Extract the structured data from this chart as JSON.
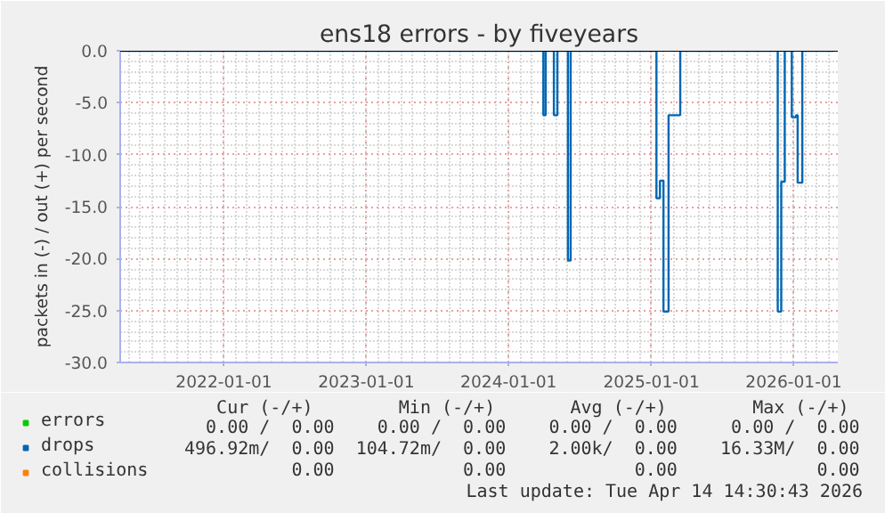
{
  "chart_data": {
    "type": "step",
    "title": "ens18 errors - by fiveyears",
    "ylabel": "packets in (-) / out (+) per second",
    "x": [
      "2021-04-14",
      "2024-03-30",
      "2024-04-05",
      "2024-04-26",
      "2024-05-05",
      "2024-06-01",
      "2024-06-08",
      "2025-01-14",
      "2025-01-23",
      "2025-02-01",
      "2025-02-14",
      "2025-03-16",
      "2025-11-21",
      "2025-11-30",
      "2025-12-09",
      "2025-12-27",
      "2026-01-07",
      "2026-01-11",
      "2026-01-23",
      "2026-04-14"
    ],
    "series": [
      {
        "name": "errors",
        "color": "#00cc00",
        "values": [
          null,
          null,
          null,
          null,
          null,
          null,
          null,
          null,
          null,
          null,
          null,
          null,
          null,
          null,
          null,
          null,
          null,
          null,
          null,
          null
        ]
      },
      {
        "name": "drops",
        "color": "#0066b3",
        "values": [
          0,
          -6.2,
          0,
          -6.2,
          0,
          -20.2,
          0,
          -14.2,
          -12.5,
          -25.1,
          -6.2,
          0,
          -25.1,
          -12.6,
          0,
          -6.4,
          -6.2,
          -12.7,
          0,
          0
        ]
      },
      {
        "name": "collisions",
        "color": "#ff8000",
        "values": [
          null,
          null,
          null,
          null,
          null,
          null,
          null,
          null,
          null,
          null,
          null,
          null,
          null,
          null,
          null,
          null,
          null,
          null,
          null,
          null
        ]
      }
    ],
    "xlim": [
      "2021-04-10",
      "2026-04-24"
    ],
    "xticks": [
      "2022-01-01",
      "2023-01-01",
      "2024-01-01",
      "2025-01-01",
      "2026-01-01"
    ],
    "ylim": [
      -30,
      0
    ],
    "yticks": [
      {
        "value": -30,
        "label": "-30.0"
      },
      {
        "value": -25,
        "label": "-25.0"
      },
      {
        "value": -20,
        "label": "-20.0"
      },
      {
        "value": -15,
        "label": "-15.0"
      },
      {
        "value": -10,
        "label": "-10.0"
      },
      {
        "value": -5,
        "label": "-5.0"
      },
      {
        "value": 0,
        "label": "0.0"
      }
    ],
    "ref_lines": [
      {
        "axis": "y",
        "value": 0,
        "color": "#000000"
      }
    ],
    "grid": true,
    "legend": "bottom",
    "annotations": [
      "   Cur (-/+)        Min (-/+)       Avg (-/+)        Max (-/+)",
      "  0.00 /  0.00    0.00 /  0.00    0.00 /  0.00     0.00 /  0.00",
      "496.92m/  0.00  104.72m/  0.00    2.00k/  0.00    16.33M/  0.00",
      "          0.00            0.00            0.00             0.00",
      "Last update: Tue Apr 14 14:30:43 2026"
    ]
  }
}
